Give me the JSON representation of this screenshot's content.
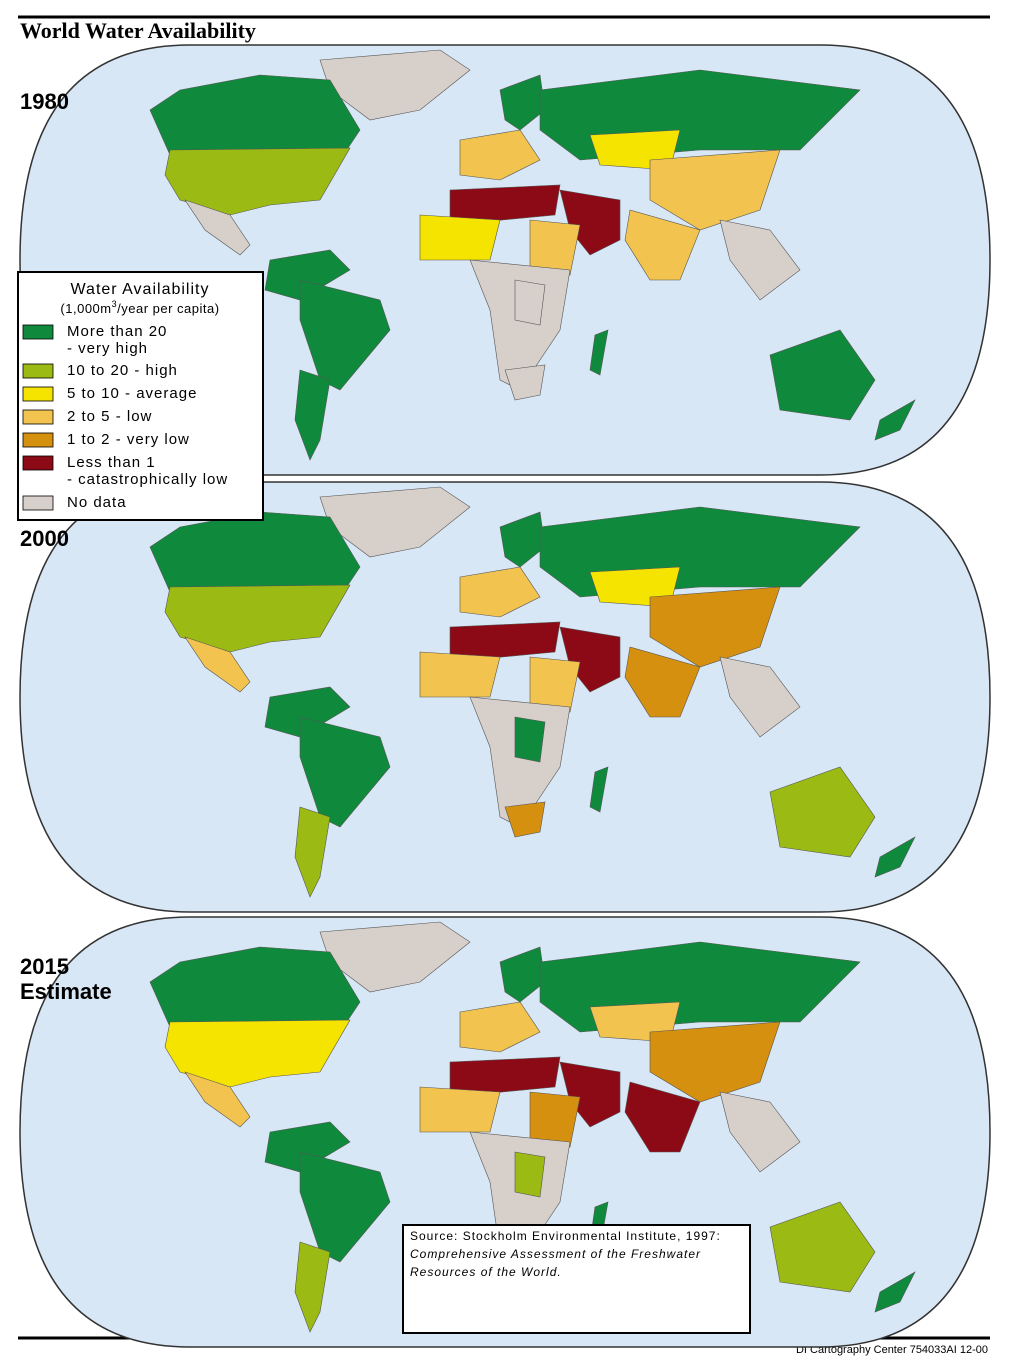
{
  "title": "World Water Availability",
  "maps": [
    {
      "label": [
        "1980"
      ]
    },
    {
      "label": [
        "2000"
      ]
    },
    {
      "label": [
        "2015",
        "Estimate"
      ]
    }
  ],
  "legend": {
    "title": "Water Availability",
    "unit": [
      "(1,000m",
      "3",
      "/year per capita)"
    ],
    "items": [
      {
        "lines": [
          "More than 20",
          "- very high"
        ],
        "color": "#0f8a3c"
      },
      {
        "lines": [
          "10 to 20 - high"
        ],
        "color": "#9bbb14"
      },
      {
        "lines": [
          "5 to 10 - average"
        ],
        "color": "#f5e400"
      },
      {
        "lines": [
          "2 to 5 - low"
        ],
        "color": "#f2c44f"
      },
      {
        "lines": [
          "1 to 2 - very low"
        ],
        "color": "#d6900f"
      },
      {
        "lines": [
          "Less than 1",
          "- catastrophically low"
        ],
        "color": "#8b0a16"
      },
      {
        "lines": [
          "No data"
        ],
        "color": "#d7cfca"
      }
    ]
  },
  "source": {
    "lines": [
      "Source:  Stockholm Environmental Institute, 1997:",
      "Comprehensive Assessment of the Freshwater",
      "Resources of the World."
    ]
  },
  "credit": "DI Cartography Center 754033AI 12-00"
}
